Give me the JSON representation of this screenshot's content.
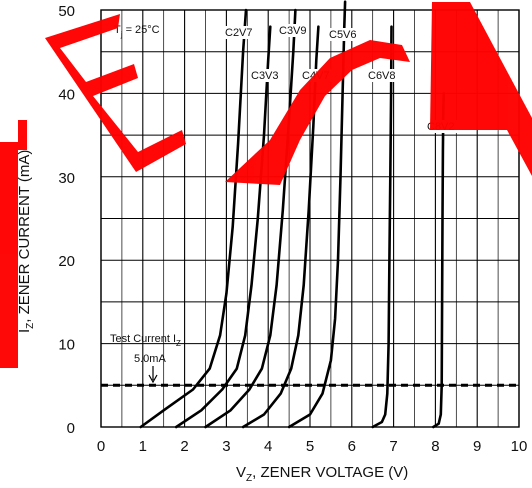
{
  "chart_data": {
    "type": "line",
    "title": "",
    "xlabel": "V",
    "xlabel_sub": "Z",
    "xlabel_suffix": ", ZENER VOLTAGE (V)",
    "ylabel": "I",
    "ylabel_sub": "Z",
    "ylabel_suffix": ", ZENER CURRENT (mA)",
    "xlim": [
      0,
      10
    ],
    "ylim": [
      0,
      50
    ],
    "x_ticks": [
      "0",
      "1",
      "2",
      "3",
      "4",
      "5",
      "6",
      "7",
      "8",
      "9",
      "10"
    ],
    "y_ticks": [
      "0",
      "10",
      "20",
      "30",
      "40",
      "50"
    ],
    "grid": true,
    "condition": "T",
    "condition_sub": "j",
    "condition_suffix": " = 25°C",
    "test_current": {
      "label": "Test Current I",
      "label_sub": "Z",
      "value_label": "5.0mA",
      "value": 5.0
    },
    "watermark_color": "#ff0000",
    "series": [
      {
        "name": "C2V7",
        "points": [
          [
            0.95,
            0
          ],
          [
            1.5,
            2
          ],
          [
            2.2,
            4.5
          ],
          [
            2.6,
            7
          ],
          [
            2.85,
            11
          ],
          [
            3.0,
            16
          ],
          [
            3.15,
            24
          ],
          [
            3.28,
            34
          ],
          [
            3.4,
            45
          ],
          [
            3.47,
            50
          ]
        ]
      },
      {
        "name": "C3V3",
        "points": [
          [
            1.8,
            0
          ],
          [
            2.4,
            2
          ],
          [
            2.9,
            4.5
          ],
          [
            3.25,
            7
          ],
          [
            3.45,
            11
          ],
          [
            3.6,
            17
          ],
          [
            3.75,
            25
          ],
          [
            3.9,
            35
          ],
          [
            4.0,
            44
          ],
          [
            4.05,
            48
          ]
        ]
      },
      {
        "name": "C3V9",
        "points": [
          [
            2.5,
            0
          ],
          [
            3.1,
            2
          ],
          [
            3.55,
            4.5
          ],
          [
            3.85,
            7
          ],
          [
            4.05,
            11
          ],
          [
            4.2,
            17
          ],
          [
            4.35,
            26
          ],
          [
            4.5,
            37
          ],
          [
            4.6,
            45
          ],
          [
            4.65,
            50
          ]
        ]
      },
      {
        "name": "C4V7",
        "points": [
          [
            3.4,
            0
          ],
          [
            3.9,
            1.5
          ],
          [
            4.3,
            4
          ],
          [
            4.55,
            7
          ],
          [
            4.72,
            11
          ],
          [
            4.85,
            17
          ],
          [
            4.97,
            26
          ],
          [
            5.08,
            36
          ],
          [
            5.15,
            44
          ],
          [
            5.2,
            48
          ]
        ]
      },
      {
        "name": "C5V6",
        "points": [
          [
            4.5,
            0
          ],
          [
            5.0,
            1.5
          ],
          [
            5.3,
            4
          ],
          [
            5.5,
            8
          ],
          [
            5.6,
            13
          ],
          [
            5.67,
            20
          ],
          [
            5.73,
            30
          ],
          [
            5.78,
            40
          ],
          [
            5.82,
            48
          ],
          [
            5.84,
            51
          ]
        ]
      },
      {
        "name": "C6V8",
        "points": [
          [
            6.5,
            0
          ],
          [
            6.72,
            0.6
          ],
          [
            6.8,
            1.5
          ],
          [
            6.85,
            4
          ],
          [
            6.88,
            10
          ],
          [
            6.9,
            20
          ],
          [
            6.92,
            30
          ],
          [
            6.94,
            40
          ],
          [
            6.95,
            48
          ]
        ]
      },
      {
        "name": "C8V2",
        "points": [
          [
            7.95,
            0
          ],
          [
            8.08,
            0.4
          ],
          [
            8.13,
            1.5
          ],
          [
            8.15,
            5
          ],
          [
            8.16,
            15
          ],
          [
            8.17,
            25
          ],
          [
            8.18,
            33
          ],
          [
            8.19,
            38
          ],
          [
            8.2,
            40
          ]
        ]
      }
    ]
  }
}
